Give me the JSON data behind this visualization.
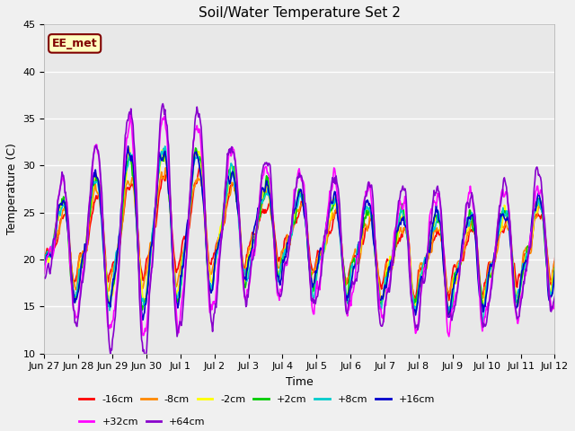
{
  "title": "Soil/Water Temperature Set 2",
  "xlabel": "Time",
  "ylabel": "Temperature (C)",
  "ylim": [
    10,
    45
  ],
  "background_color": "#e8e8e8",
  "plot_bg_color": "#e8e8e8",
  "fig_bg_color": "#f0f0f0",
  "annotation_text": "EE_met",
  "annotation_bg": "#ffffc0",
  "annotation_border": "#800000",
  "annotation_text_color": "#800000",
  "legend_entries": [
    "-16cm",
    "-8cm",
    "-2cm",
    "+2cm",
    "+8cm",
    "+16cm",
    "+32cm",
    "+64cm"
  ],
  "line_colors": [
    "#ff0000",
    "#ff8800",
    "#ffff00",
    "#00cc00",
    "#00cccc",
    "#0000cc",
    "#ff00ff",
    "#8800cc"
  ],
  "line_widths": [
    1.2,
    1.2,
    1.2,
    1.2,
    1.2,
    1.2,
    1.2,
    1.2
  ],
  "tick_labels": [
    "Jun 27",
    "Jun 28",
    "Jun 29",
    "Jun 30",
    "Jul 1",
    "Jul 2",
    "Jul 3",
    "Jul 4",
    "Jul 5",
    "Jul 6",
    "Jul 7",
    "Jul 8",
    "Jul 9",
    "Jul 10",
    "Jul 11",
    "Jul 12"
  ],
  "tick_positions": [
    0,
    1,
    2,
    3,
    4,
    5,
    6,
    7,
    8,
    9,
    10,
    11,
    12,
    13,
    14,
    15
  ],
  "yticks": [
    10,
    15,
    20,
    25,
    30,
    35,
    40,
    45
  ]
}
